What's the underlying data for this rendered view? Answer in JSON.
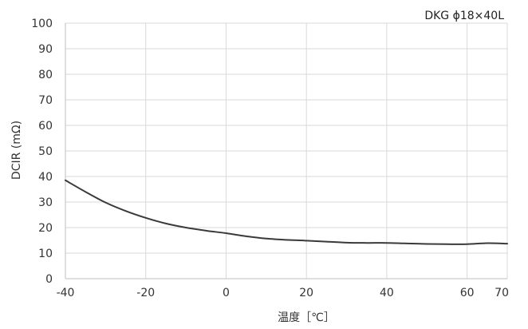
{
  "chart_data": {
    "type": "line",
    "title": "DKG ϕ18×40L",
    "xlabel": "温度［℃］",
    "ylabel": "DCIR (mΩ)",
    "xlim": [
      -40,
      70
    ],
    "ylim": [
      0,
      100
    ],
    "x_ticks": [
      -40,
      -20,
      0,
      20,
      40,
      60,
      70
    ],
    "y_ticks": [
      0,
      10,
      20,
      30,
      40,
      50,
      60,
      70,
      80,
      90,
      100
    ],
    "grid": true,
    "series": [
      {
        "color": "#3a3a3a",
        "x": [
          -40,
          -35,
          -30,
          -25,
          -20,
          -15,
          -10,
          -5,
          0,
          5,
          10,
          15,
          20,
          25,
          30,
          35,
          40,
          45,
          50,
          55,
          60,
          65,
          70
        ],
        "y": [
          38.5,
          34.0,
          29.8,
          26.5,
          23.8,
          21.6,
          20.0,
          18.8,
          17.8,
          16.6,
          15.7,
          15.2,
          14.9,
          14.5,
          14.1,
          14.0,
          14.0,
          13.8,
          13.6,
          13.5,
          13.5,
          13.9,
          13.7
        ]
      }
    ]
  }
}
